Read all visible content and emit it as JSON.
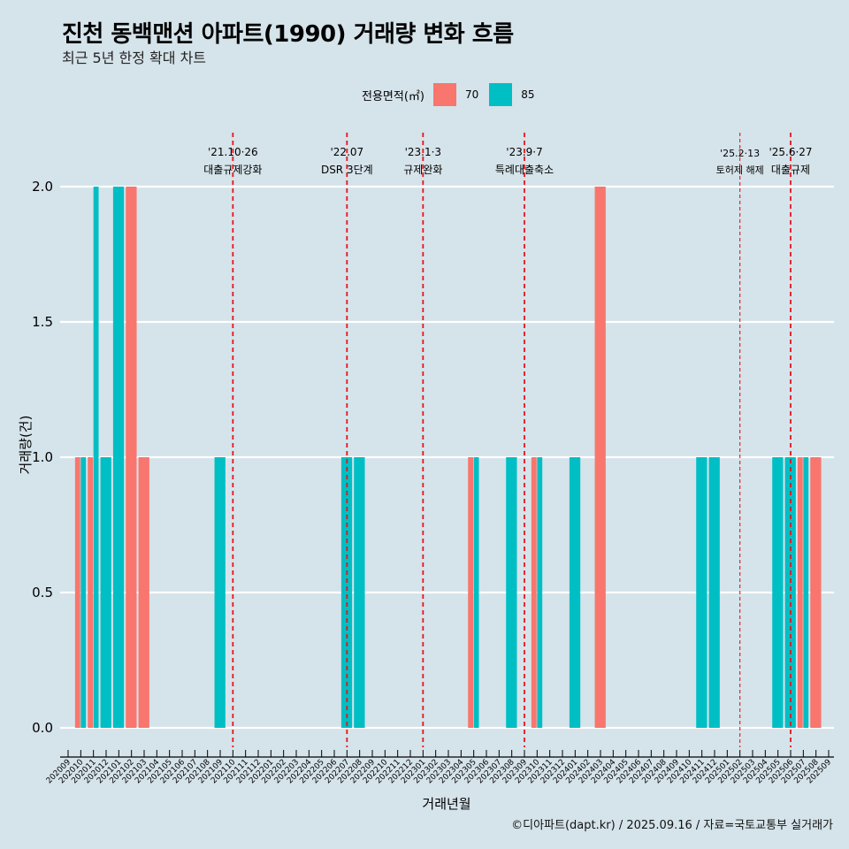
{
  "header": {
    "title": "진천 동백맨션 아파트(1990) 거래량 변화 흐름",
    "subtitle": "최근 5년 한정 확대 차트"
  },
  "legend": {
    "title": "전용면적(㎡)",
    "items": [
      {
        "label": "70",
        "color": "#F8766D"
      },
      {
        "label": "85",
        "color": "#00BFC4"
      }
    ]
  },
  "caption": "©디아파트(dapt.kr) / 2025.09.16 / 자료=국토교통부 실거래가",
  "chart_data": {
    "type": "bar",
    "title": "진천 동백맨션 아파트(1990) 거래량 변화 흐름",
    "subtitle": "최근 5년 한정 확대 차트",
    "xlabel": "거래년월",
    "ylabel": "거래량(건)",
    "ylim": [
      0,
      2
    ],
    "yticks": [
      "0.0",
      "0.5",
      "1.0",
      "1.5",
      "2.0"
    ],
    "ytick_values": [
      0,
      0.5,
      1.0,
      1.5,
      2.0
    ],
    "grid": true,
    "legend_position": "top",
    "categories": [
      "202009",
      "202010",
      "202011",
      "202012",
      "202101",
      "202102",
      "202103",
      "202104",
      "202105",
      "202106",
      "202107",
      "202108",
      "202109",
      "202110",
      "202111",
      "202112",
      "202201",
      "202202",
      "202203",
      "202204",
      "202205",
      "202206",
      "202207",
      "202208",
      "202209",
      "202210",
      "202211",
      "202212",
      "202301",
      "202302",
      "202303",
      "202304",
      "202305",
      "202306",
      "202307",
      "202308",
      "202309",
      "202310",
      "202311",
      "202312",
      "202401",
      "202402",
      "202403",
      "202404",
      "202405",
      "202406",
      "202407",
      "202408",
      "202409",
      "202410",
      "202411",
      "202412",
      "202501",
      "202502",
      "202503",
      "202504",
      "202505",
      "202506",
      "202507",
      "202508",
      "202509"
    ],
    "series": [
      {
        "name": "70",
        "color": "#F8766D",
        "points": [
          [
            "202010",
            1
          ],
          [
            "202011",
            1
          ],
          [
            "202102",
            2
          ],
          [
            "202103",
            1
          ],
          [
            "202305",
            1
          ],
          [
            "202310",
            1
          ],
          [
            "202403",
            2
          ],
          [
            "202507",
            1
          ],
          [
            "202508",
            1
          ]
        ]
      },
      {
        "name": "85",
        "color": "#00BFC4",
        "points": [
          [
            "202010",
            1
          ],
          [
            "202011",
            2
          ],
          [
            "202012",
            1
          ],
          [
            "202101",
            2
          ],
          [
            "202109",
            1
          ],
          [
            "202207",
            1
          ],
          [
            "202208",
            1
          ],
          [
            "202305",
            1
          ],
          [
            "202308",
            1
          ],
          [
            "202310",
            1
          ],
          [
            "202401",
            1
          ],
          [
            "202411",
            1
          ],
          [
            "202412",
            1
          ],
          [
            "202505",
            1
          ],
          [
            "202506",
            1
          ],
          [
            "202507",
            1
          ]
        ]
      }
    ],
    "events": [
      {
        "month": "202110",
        "date": "'21.10·26",
        "label": "대출규제강화",
        "style": "bold"
      },
      {
        "month": "202207",
        "date": "'22.07",
        "label": "DSR 3단계",
        "style": "bold"
      },
      {
        "month": "202301",
        "date": "'23.1·3",
        "label": "규제완화",
        "style": "bold"
      },
      {
        "month": "202309",
        "date": "'23.9·7",
        "label": "특례대출축소",
        "style": "bold"
      },
      {
        "month": "202502",
        "date": "'25.2·13",
        "label": "토허제 해제",
        "style": "thin"
      },
      {
        "month": "202506",
        "date": "'25.6·27",
        "label": "대출규제",
        "style": "bold"
      }
    ]
  }
}
